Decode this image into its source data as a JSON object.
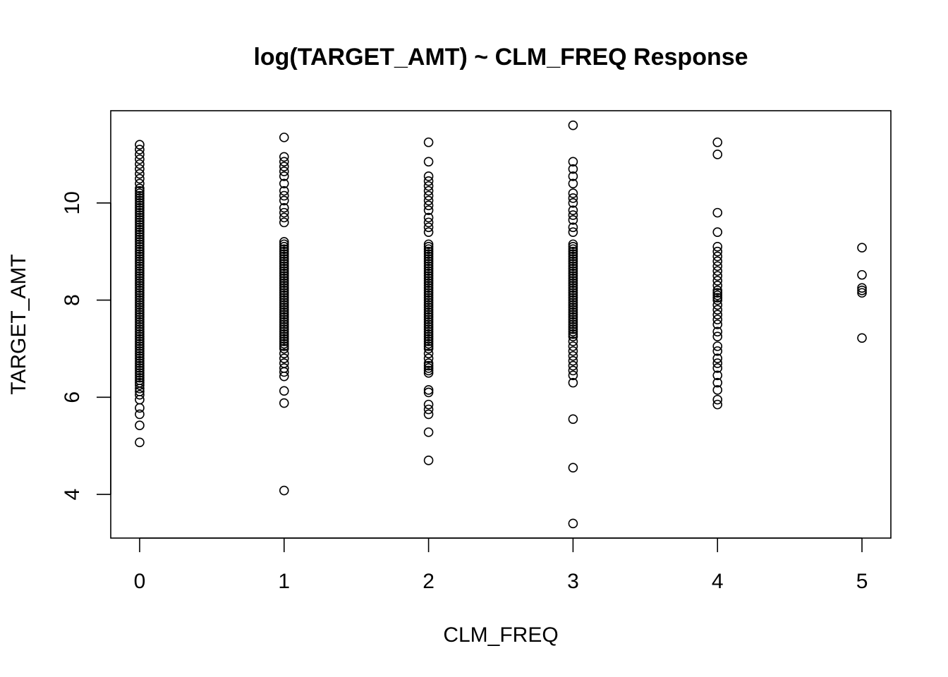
{
  "chart_data": {
    "type": "scatter",
    "title": "log(TARGET_AMT) ~ CLM_FREQ Response",
    "xlabel": "CLM_FREQ",
    "ylabel": "TARGET_AMT",
    "xlim": [
      -0.2,
      5.2
    ],
    "ylim": [
      3.1,
      11.9
    ],
    "xticks": [
      0,
      1,
      2,
      3,
      4,
      5
    ],
    "yticks": [
      4,
      6,
      8,
      10
    ],
    "grid": false,
    "series": [
      {
        "x": 0,
        "values": [
          5.07,
          5.42,
          5.65,
          5.78,
          5.95,
          6.05,
          6.12,
          6.18,
          6.25,
          6.3,
          6.35,
          6.4,
          6.45,
          6.5,
          6.55,
          6.6,
          6.65,
          6.7,
          6.75,
          6.8,
          6.85,
          6.9,
          6.95,
          7.0,
          7.05,
          7.1,
          7.15,
          7.2,
          7.25,
          7.3,
          7.35,
          7.4,
          7.45,
          7.5,
          7.55,
          7.6,
          7.65,
          7.7,
          7.75,
          7.8,
          7.85,
          7.9,
          7.95,
          8.0,
          8.05,
          8.1,
          8.15,
          8.2,
          8.25,
          8.3,
          8.35,
          8.4,
          8.45,
          8.5,
          8.55,
          8.6,
          8.65,
          8.7,
          8.75,
          8.8,
          8.85,
          8.9,
          8.95,
          9.0,
          9.05,
          9.1,
          9.15,
          9.2,
          9.25,
          9.3,
          9.35,
          9.4,
          9.45,
          9.5,
          9.55,
          9.6,
          9.65,
          9.7,
          9.75,
          9.8,
          9.85,
          9.9,
          9.95,
          10.0,
          10.05,
          10.1,
          10.15,
          10.2,
          10.25,
          10.3,
          10.4,
          10.5,
          10.6,
          10.7,
          10.8,
          10.9,
          11.0,
          11.1,
          11.2
        ]
      },
      {
        "x": 1,
        "values": [
          4.08,
          5.88,
          6.13,
          6.43,
          6.52,
          6.6,
          6.7,
          6.8,
          6.9,
          7.0,
          7.05,
          7.1,
          7.15,
          7.2,
          7.25,
          7.3,
          7.35,
          7.4,
          7.45,
          7.5,
          7.55,
          7.6,
          7.65,
          7.7,
          7.75,
          7.8,
          7.85,
          7.9,
          7.95,
          8.0,
          8.05,
          8.1,
          8.15,
          8.2,
          8.25,
          8.3,
          8.35,
          8.4,
          8.45,
          8.5,
          8.55,
          8.6,
          8.65,
          8.7,
          8.75,
          8.8,
          8.85,
          8.9,
          8.95,
          9.0,
          9.05,
          9.1,
          9.15,
          9.2,
          9.6,
          9.7,
          9.8,
          9.9,
          10.05,
          10.15,
          10.25,
          10.4,
          10.55,
          10.65,
          10.75,
          10.85,
          10.95,
          11.35
        ]
      },
      {
        "x": 2,
        "values": [
          4.7,
          5.28,
          5.65,
          5.75,
          5.85,
          6.1,
          6.15,
          6.5,
          6.55,
          6.6,
          6.65,
          6.7,
          6.8,
          6.9,
          7.0,
          7.05,
          7.1,
          7.15,
          7.2,
          7.25,
          7.3,
          7.35,
          7.4,
          7.45,
          7.5,
          7.55,
          7.6,
          7.65,
          7.7,
          7.75,
          7.8,
          7.85,
          7.9,
          7.95,
          8.0,
          8.05,
          8.1,
          8.15,
          8.2,
          8.25,
          8.3,
          8.35,
          8.4,
          8.45,
          8.5,
          8.55,
          8.6,
          8.65,
          8.7,
          8.75,
          8.8,
          8.85,
          8.9,
          8.95,
          9.0,
          9.05,
          9.1,
          9.15,
          9.4,
          9.5,
          9.6,
          9.7,
          9.85,
          9.95,
          10.05,
          10.15,
          10.25,
          10.35,
          10.45,
          10.55,
          10.85,
          11.25
        ]
      },
      {
        "x": 3,
        "values": [
          3.4,
          4.55,
          5.55,
          6.3,
          6.45,
          6.55,
          6.65,
          6.75,
          6.85,
          6.95,
          7.05,
          7.15,
          7.25,
          7.3,
          7.35,
          7.4,
          7.45,
          7.5,
          7.55,
          7.6,
          7.65,
          7.7,
          7.75,
          7.8,
          7.85,
          7.9,
          7.95,
          8.0,
          8.05,
          8.1,
          8.15,
          8.2,
          8.25,
          8.3,
          8.35,
          8.4,
          8.45,
          8.5,
          8.55,
          8.6,
          8.65,
          8.7,
          8.75,
          8.8,
          8.85,
          8.9,
          8.95,
          9.0,
          9.05,
          9.1,
          9.15,
          9.4,
          9.5,
          9.65,
          9.75,
          9.85,
          10.0,
          10.1,
          10.2,
          10.4,
          10.55,
          10.7,
          10.85,
          11.6
        ]
      },
      {
        "x": 4,
        "values": [
          5.85,
          5.95,
          6.15,
          6.3,
          6.45,
          6.6,
          6.7,
          6.8,
          6.95,
          7.05,
          7.25,
          7.35,
          7.5,
          7.6,
          7.7,
          7.8,
          7.9,
          8.0,
          8.05,
          8.1,
          8.15,
          8.2,
          8.3,
          8.4,
          8.5,
          8.6,
          8.7,
          8.8,
          8.9,
          9.0,
          9.1,
          9.4,
          9.8,
          11.0,
          11.25
        ]
      },
      {
        "x": 5,
        "values": [
          7.22,
          8.15,
          8.2,
          8.25,
          8.52,
          9.08
        ]
      }
    ]
  }
}
